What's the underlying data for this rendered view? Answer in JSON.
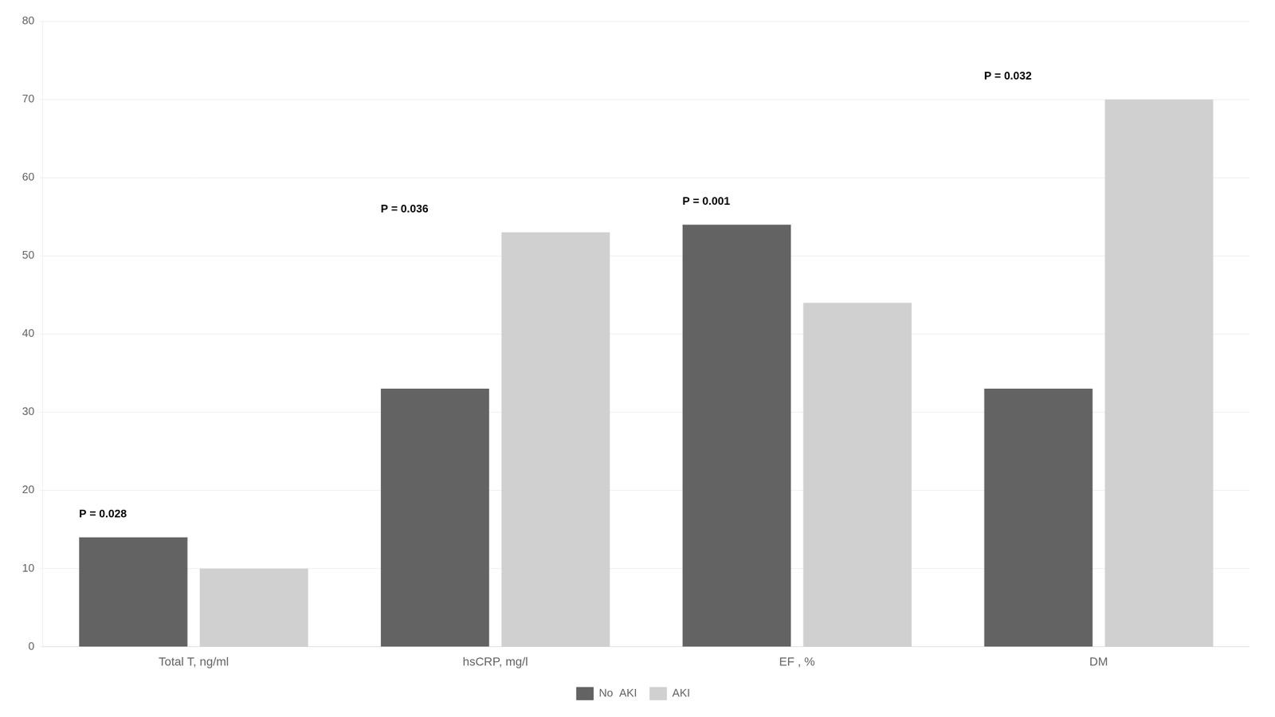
{
  "chart_data": {
    "type": "bar",
    "categories": [
      "Total T, ng/ml",
      "hsCRP, mg/l",
      "EF , %",
      "DM"
    ],
    "series": [
      {
        "name": "No  AKI",
        "color": "#636363",
        "values": [
          14,
          33,
          54,
          33
        ]
      },
      {
        "name": "AKI",
        "color": "#d0d0d0",
        "values": [
          10,
          53,
          44,
          70
        ]
      }
    ],
    "annotations": [
      {
        "text": "P = 0.028",
        "category": "Total T, ng/ml",
        "y": 16
      },
      {
        "text": "P = 0.036",
        "category": "hsCRP, mg/l",
        "y": 55
      },
      {
        "text": "P = 0.001",
        "category": "EF , %",
        "y": 56
      },
      {
        "text": "P = 0.032",
        "category": "DM",
        "y": 72
      }
    ],
    "ylim": [
      0,
      80
    ],
    "yticks": [
      0,
      10,
      20,
      30,
      40,
      50,
      60,
      70,
      80
    ],
    "grid": true,
    "legend": "bottom"
  }
}
